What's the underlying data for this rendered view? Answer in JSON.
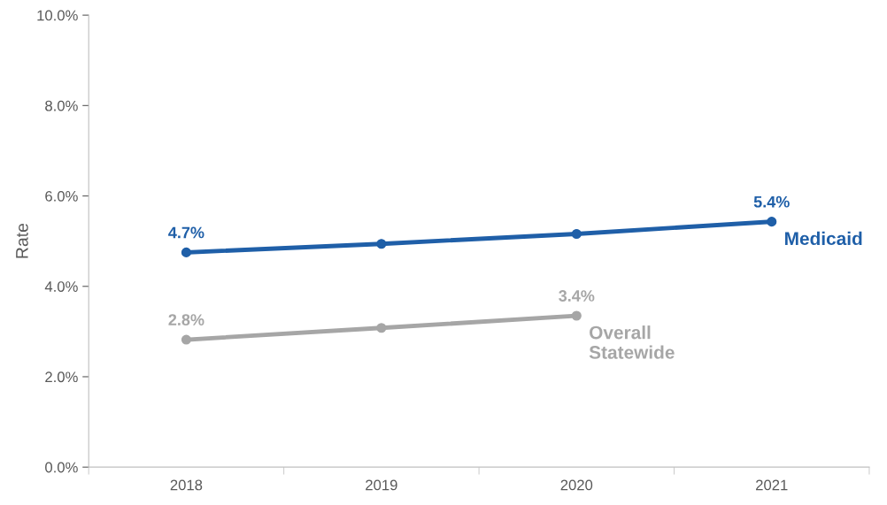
{
  "chart_data": {
    "type": "line",
    "ylabel": "Rate",
    "categories": [
      "2018",
      "2019",
      "2020",
      "2021"
    ],
    "series": [
      {
        "name": "Medicaid",
        "color": "#1f5fa8",
        "values": [
          4.75,
          4.94,
          5.16,
          5.43
        ],
        "value_labels": [
          "4.7%",
          null,
          null,
          "5.4%"
        ]
      },
      {
        "name": "Overall\nStatewide",
        "color": "#a6a6a6",
        "values": [
          2.82,
          3.08,
          3.35,
          null
        ],
        "value_labels": [
          "2.8%",
          null,
          "3.4%",
          null
        ]
      }
    ],
    "ylim": [
      0,
      10
    ],
    "yticks": [
      {
        "value": 0,
        "label": "0.0%"
      },
      {
        "value": 2,
        "label": "2.0%"
      },
      {
        "value": 4,
        "label": "4.0%"
      },
      {
        "value": 6,
        "label": "6.0%"
      },
      {
        "value": 8,
        "label": "8.0%"
      },
      {
        "value": 10,
        "label": "10.0%"
      }
    ],
    "marker": "circle",
    "line_style": "solid",
    "grid": false,
    "legend": false
  }
}
